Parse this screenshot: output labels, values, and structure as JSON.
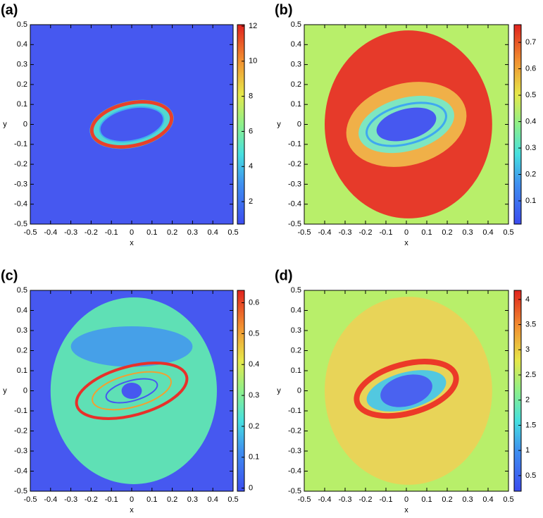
{
  "chart_data": [
    {
      "type": "heatmap",
      "panel_label": "(a)",
      "xlabel": "x",
      "ylabel": "y",
      "xlim": [
        -0.5,
        0.5
      ],
      "ylim": [
        -0.5,
        0.5
      ],
      "xticks": [
        -0.5,
        -0.4,
        -0.3,
        -0.2,
        -0.1,
        0,
        0.1,
        0.2,
        0.3,
        0.4,
        0.5
      ],
      "yticks": [
        -0.5,
        -0.4,
        -0.3,
        -0.2,
        -0.1,
        0,
        0.1,
        0.2,
        0.3,
        0.4,
        0.5
      ],
      "colormap": "jet",
      "colorbar": {
        "lim": [
          0.72,
          12.08
        ],
        "ticks": [
          2,
          4,
          6,
          8,
          10,
          12
        ]
      }
    },
    {
      "type": "heatmap",
      "panel_label": "(b)",
      "xlabel": "x",
      "ylabel": "y",
      "xlim": [
        -0.5,
        0.5
      ],
      "ylim": [
        -0.5,
        0.5
      ],
      "xticks": [
        -0.5,
        -0.4,
        -0.3,
        -0.2,
        -0.1,
        0,
        0.1,
        0.2,
        0.3,
        0.4,
        0.5
      ],
      "yticks": [
        -0.5,
        -0.4,
        -0.3,
        -0.2,
        -0.1,
        0,
        0.1,
        0.2,
        0.3,
        0.4,
        0.5
      ],
      "colormap": "jet",
      "colorbar": {
        "lim": [
          0.012,
          0.767
        ],
        "ticks": [
          0.1,
          0.2,
          0.3,
          0.4,
          0.5,
          0.6,
          0.7
        ]
      }
    },
    {
      "type": "heatmap",
      "panel_label": "(c)",
      "xlabel": "x",
      "ylabel": "y",
      "xlim": [
        -0.5,
        0.5
      ],
      "ylim": [
        -0.5,
        0.5
      ],
      "xticks": [
        -0.5,
        -0.4,
        -0.3,
        -0.2,
        -0.1,
        0,
        0.1,
        0.2,
        0.3,
        0.4,
        0.5
      ],
      "yticks": [
        -0.5,
        -0.4,
        -0.3,
        -0.2,
        -0.1,
        0,
        0.1,
        0.2,
        0.3,
        0.4,
        0.5
      ],
      "colormap": "jet",
      "colorbar": {
        "lim": [
          -0.01,
          0.64
        ],
        "ticks": [
          0,
          0.1,
          0.2,
          0.3,
          0.4,
          0.5,
          0.6
        ]
      }
    },
    {
      "type": "heatmap",
      "panel_label": "(d)",
      "xlabel": "x",
      "ylabel": "y",
      "xlim": [
        -0.5,
        0.5
      ],
      "ylim": [
        -0.5,
        0.5
      ],
      "xticks": [
        -0.5,
        -0.4,
        -0.3,
        -0.2,
        -0.1,
        0,
        0.1,
        0.2,
        0.3,
        0.4,
        0.5
      ],
      "yticks": [
        -0.5,
        -0.4,
        -0.3,
        -0.2,
        -0.1,
        0,
        0.1,
        0.2,
        0.3,
        0.4,
        0.5
      ],
      "colormap": "jet",
      "colorbar": {
        "lim": [
          0.19,
          4.18
        ],
        "ticks": [
          0.5,
          1,
          1.5,
          2,
          2.5,
          3,
          3.5,
          4
        ]
      }
    }
  ]
}
